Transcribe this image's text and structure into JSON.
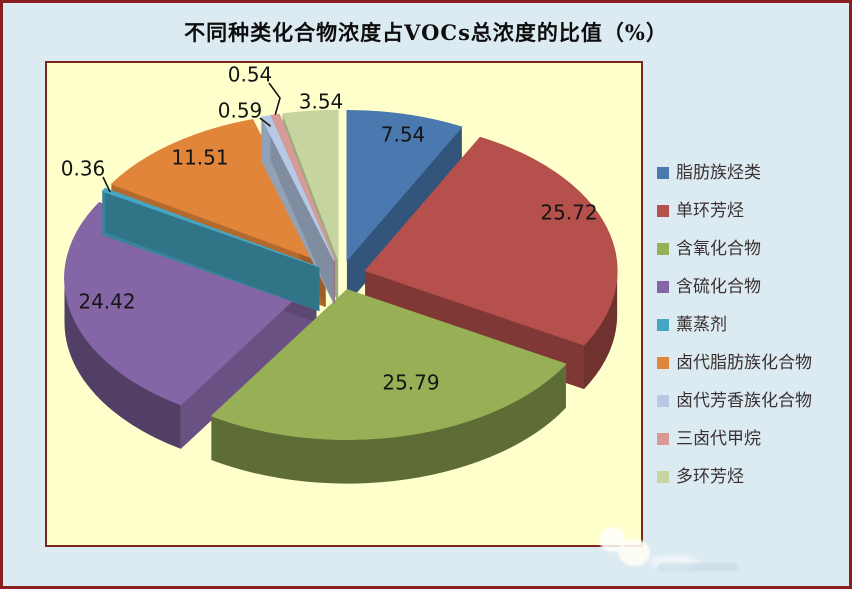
{
  "chart_data": {
    "type": "pie",
    "style": "3d-exploded-pie",
    "title": "不同种类化合物浓度占VOCs总浓度的比值（%）",
    "unit": "%",
    "legend_position": "right",
    "categories": [
      "脂肪族烃类",
      "单环芳烃",
      "含氧化合物",
      "含硫化合物",
      "薰蒸剂",
      "卤代脂肪族化合物",
      "卤代芳香族化合物",
      "三卤代甲烷",
      "多环芳烃"
    ],
    "values": [
      7.54,
      25.72,
      25.79,
      24.42,
      0.36,
      11.51,
      0.59,
      0.54,
      3.54
    ],
    "labels": [
      "7.54",
      "25.72",
      "25.79",
      "24.42",
      "0.36",
      "11.51",
      "0.59",
      "0.54",
      "3.54"
    ],
    "colors": [
      "#4a79b0",
      "#b5504c",
      "#97b055",
      "#8465a5",
      "#46a6c2",
      "#e08539",
      "#b7c9e4",
      "#d89a96",
      "#c6d5a0"
    ]
  },
  "theme": {
    "page_background": "#dcebf2",
    "outer_border": "#8b1f1f",
    "plot_background": "#ffffcc",
    "plot_border": "#7e2222",
    "title_color": "#0d0d0d",
    "label_color": "#151515",
    "legend_text_color": "#3a3030",
    "leader_line_color": "#141414"
  }
}
